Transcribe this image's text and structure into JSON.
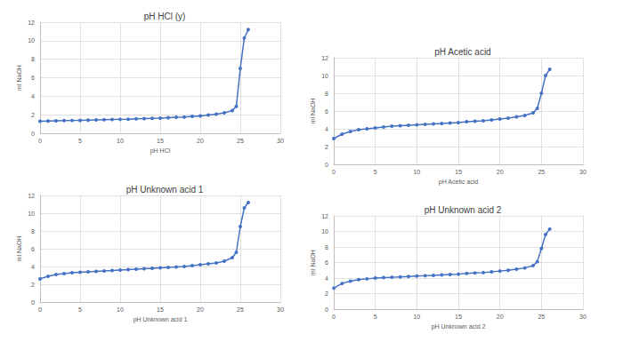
{
  "chart_data": [
    {
      "type": "line",
      "title": "pH HCl (y)",
      "x_label": "pH HCl",
      "y_label": "ml NaOH",
      "x": [
        0,
        1,
        2,
        3,
        4,
        5,
        6,
        7,
        8,
        9,
        10,
        11,
        12,
        13,
        14,
        15,
        16,
        17,
        18,
        19,
        20,
        21,
        22,
        23,
        24,
        24.5,
        25,
        25.5,
        26
      ],
      "values": [
        1.3,
        1.32,
        1.34,
        1.36,
        1.38,
        1.4,
        1.42,
        1.44,
        1.46,
        1.48,
        1.5,
        1.52,
        1.55,
        1.58,
        1.61,
        1.64,
        1.68,
        1.72,
        1.76,
        1.82,
        1.88,
        1.96,
        2.06,
        2.2,
        2.45,
        2.9,
        7.0,
        10.3,
        11.2
      ],
      "color": "#4472c4",
      "marker": "circle",
      "line_style": "solid",
      "xlim": [
        0,
        30
      ],
      "xticks": [
        0,
        5,
        10,
        15,
        20,
        25,
        30
      ],
      "ylim": [
        0,
        12
      ],
      "yticks": [
        0,
        2,
        4,
        6,
        8,
        10,
        12
      ],
      "grid": true
    },
    {
      "type": "line",
      "title": "pH Acetic acid",
      "x_label": "pH Acetic acid",
      "y_label": "ml NaOH",
      "x": [
        0,
        1,
        2,
        3,
        4,
        5,
        6,
        7,
        8,
        9,
        10,
        11,
        12,
        13,
        14,
        15,
        16,
        17,
        18,
        19,
        20,
        21,
        22,
        23,
        24,
        24.5,
        25,
        25.5,
        26
      ],
      "values": [
        2.9,
        3.4,
        3.7,
        3.9,
        4.0,
        4.1,
        4.2,
        4.3,
        4.35,
        4.4,
        4.45,
        4.5,
        4.55,
        4.6,
        4.65,
        4.7,
        4.8,
        4.85,
        4.9,
        5.0,
        5.1,
        5.2,
        5.35,
        5.5,
        5.8,
        6.3,
        8.0,
        10.0,
        10.7
      ],
      "color": "#4472c4",
      "marker": "circle",
      "line_style": "solid",
      "xlim": [
        0,
        30
      ],
      "xticks": [
        0,
        5,
        10,
        15,
        20,
        25,
        30
      ],
      "ylim": [
        0,
        12
      ],
      "yticks": [
        0,
        2,
        4,
        6,
        8,
        10,
        12
      ],
      "grid": true
    },
    {
      "type": "line",
      "title": "pH Unknown acid 1",
      "x_label": "pH Unknown acid 1",
      "y_label": "ml NaOH",
      "x": [
        0,
        1,
        2,
        3,
        4,
        5,
        6,
        7,
        8,
        9,
        10,
        11,
        12,
        13,
        14,
        15,
        16,
        17,
        18,
        19,
        20,
        21,
        22,
        23,
        24,
        24.5,
        25,
        25.5,
        26
      ],
      "values": [
        2.6,
        2.9,
        3.1,
        3.2,
        3.3,
        3.35,
        3.4,
        3.45,
        3.5,
        3.55,
        3.6,
        3.65,
        3.7,
        3.75,
        3.8,
        3.85,
        3.9,
        3.95,
        4.0,
        4.1,
        4.2,
        4.3,
        4.4,
        4.6,
        5.0,
        5.6,
        8.5,
        10.6,
        11.2
      ],
      "color": "#4472c4",
      "marker": "circle",
      "line_style": "solid",
      "xlim": [
        0,
        30
      ],
      "xticks": [
        0,
        5,
        10,
        15,
        20,
        25,
        30
      ],
      "ylim": [
        0,
        12
      ],
      "yticks": [
        0,
        2,
        4,
        6,
        8,
        10,
        12
      ],
      "grid": true
    },
    {
      "type": "line",
      "title": "pH Unknown acid 2",
      "x_label": "pH Unknown acid 2",
      "y_label": "ml NaOH",
      "x": [
        0,
        1,
        2,
        3,
        4,
        5,
        6,
        7,
        8,
        9,
        10,
        11,
        12,
        13,
        14,
        15,
        16,
        17,
        18,
        19,
        20,
        21,
        22,
        23,
        24,
        24.5,
        25,
        25.5,
        26
      ],
      "values": [
        2.7,
        3.3,
        3.6,
        3.8,
        3.9,
        4.0,
        4.05,
        4.1,
        4.15,
        4.2,
        4.25,
        4.3,
        4.35,
        4.4,
        4.45,
        4.5,
        4.6,
        4.65,
        4.7,
        4.8,
        4.9,
        5.0,
        5.15,
        5.3,
        5.6,
        6.1,
        7.8,
        9.6,
        10.3
      ],
      "color": "#4472c4",
      "marker": "circle",
      "line_style": "solid",
      "xlim": [
        0,
        30
      ],
      "xticks": [
        0,
        5,
        10,
        15,
        20,
        25,
        30
      ],
      "ylim": [
        0,
        12
      ],
      "yticks": [
        0,
        2,
        4,
        6,
        8,
        10,
        12
      ],
      "grid": true
    }
  ]
}
